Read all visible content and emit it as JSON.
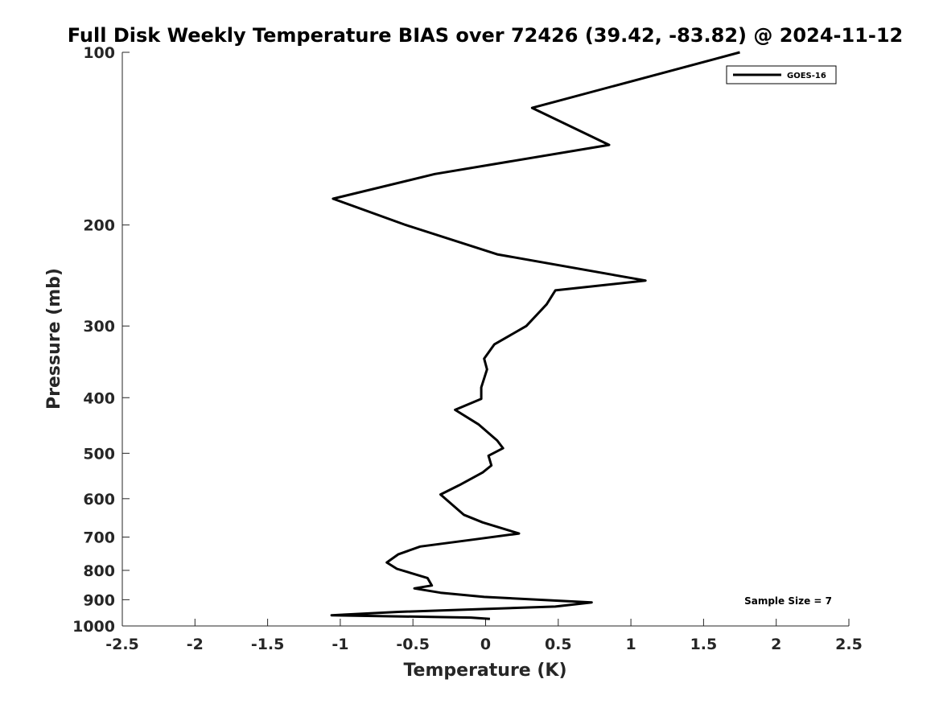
{
  "chart_data": {
    "type": "line",
    "title": "Full Disk Weekly Temperature BIAS over 72426 (39.42, -83.82) @ 2024-11-12",
    "xlabel": "Temperature (K)",
    "ylabel": "Pressure (mb)",
    "xlim": [
      -2.5,
      2.5
    ],
    "ylim": [
      100,
      1000
    ],
    "y_scale": "log",
    "y_reversed": true,
    "grid": false,
    "x_ticks": [
      "-2.5",
      "-2",
      "-1.5",
      "-1",
      "-0.5",
      "0",
      "0.5",
      "1",
      "1.5",
      "2",
      "2.5"
    ],
    "y_ticks": [
      "100",
      "200",
      "300",
      "400",
      "500",
      "600",
      "700",
      "800",
      "900",
      "1000"
    ],
    "legend": {
      "position": "top-right",
      "entries": [
        "GOES-16"
      ]
    },
    "annotation": "Sample Size = 7",
    "series": [
      {
        "name": "GOES-16",
        "color": "#000000",
        "points": [
          {
            "x": 1.75,
            "p": 100
          },
          {
            "x": 0.32,
            "p": 125
          },
          {
            "x": 0.85,
            "p": 145
          },
          {
            "x": -0.35,
            "p": 163
          },
          {
            "x": -1.05,
            "p": 180
          },
          {
            "x": -0.55,
            "p": 200
          },
          {
            "x": 0.08,
            "p": 225
          },
          {
            "x": 1.1,
            "p": 250
          },
          {
            "x": 0.48,
            "p": 260
          },
          {
            "x": 0.42,
            "p": 275
          },
          {
            "x": 0.28,
            "p": 300
          },
          {
            "x": 0.06,
            "p": 323
          },
          {
            "x": -0.01,
            "p": 342
          },
          {
            "x": 0.01,
            "p": 357
          },
          {
            "x": -0.03,
            "p": 384
          },
          {
            "x": -0.03,
            "p": 402
          },
          {
            "x": -0.21,
            "p": 420
          },
          {
            "x": -0.05,
            "p": 445
          },
          {
            "x": 0.08,
            "p": 475
          },
          {
            "x": 0.12,
            "p": 490
          },
          {
            "x": 0.02,
            "p": 505
          },
          {
            "x": 0.04,
            "p": 525
          },
          {
            "x": -0.02,
            "p": 540
          },
          {
            "x": -0.18,
            "p": 568
          },
          {
            "x": -0.31,
            "p": 590
          },
          {
            "x": -0.15,
            "p": 640
          },
          {
            "x": -0.02,
            "p": 660
          },
          {
            "x": 0.23,
            "p": 690
          },
          {
            "x": -0.05,
            "p": 705
          },
          {
            "x": -0.45,
            "p": 727
          },
          {
            "x": -0.6,
            "p": 750
          },
          {
            "x": -0.68,
            "p": 775
          },
          {
            "x": -0.61,
            "p": 795
          },
          {
            "x": -0.4,
            "p": 825
          },
          {
            "x": -0.37,
            "p": 850
          },
          {
            "x": -0.49,
            "p": 860
          },
          {
            "x": -0.31,
            "p": 875
          },
          {
            "x": -0.01,
            "p": 890
          },
          {
            "x": 0.73,
            "p": 910
          },
          {
            "x": 0.48,
            "p": 925
          },
          {
            "x": -0.6,
            "p": 945
          },
          {
            "x": -1.06,
            "p": 958
          },
          {
            "x": -0.1,
            "p": 967
          },
          {
            "x": 0.03,
            "p": 972
          }
        ]
      }
    ]
  }
}
